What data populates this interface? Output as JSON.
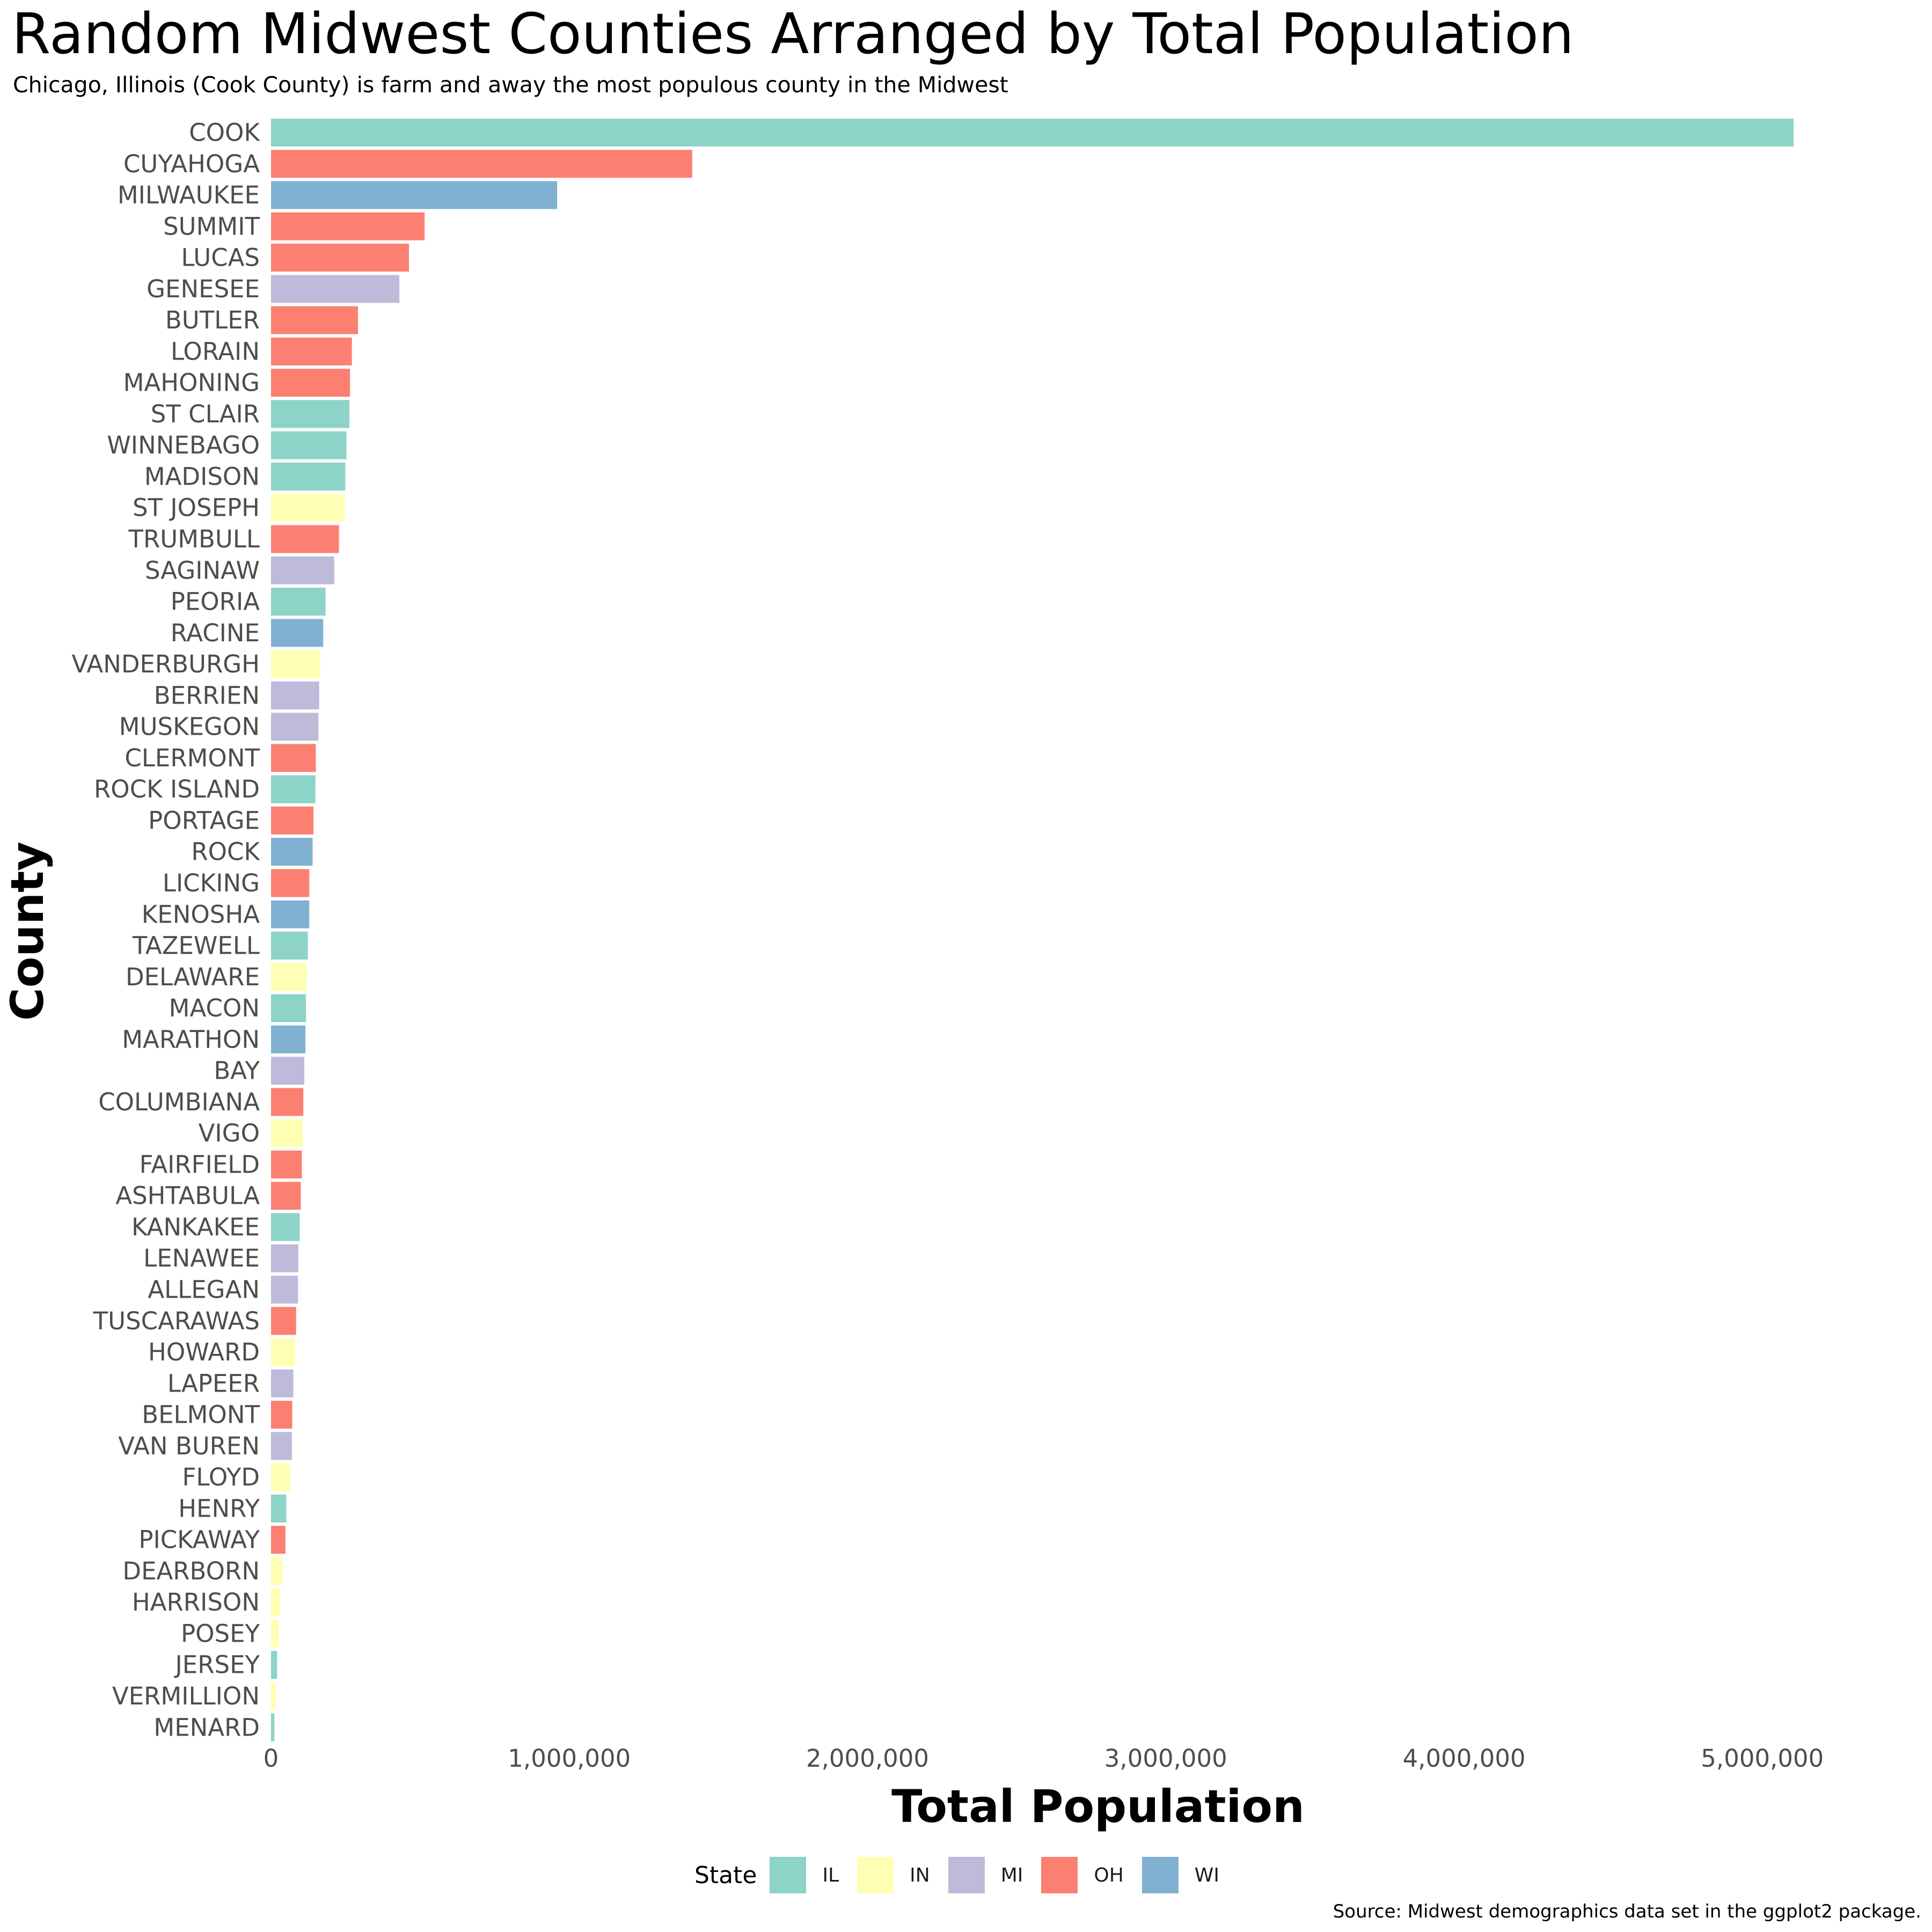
{
  "title": "Random Midwest Counties Arranged by Total Population",
  "subtitle": "Chicago, Illinois (Cook County) is farm and away the most populous county in the Midwest",
  "caption": "Source: Midwest demographics data set in the ggplot2 package.",
  "colors": {
    "IL": "#8DD3C7",
    "IN": "#FFFFB3",
    "MI": "#BEBADA",
    "OH": "#FB8072",
    "WI": "#80B1D3"
  },
  "legend": {
    "title": "State",
    "items": [
      {
        "key": "IL",
        "label": "IL"
      },
      {
        "key": "IN",
        "label": "IN"
      },
      {
        "key": "MI",
        "label": "MI"
      },
      {
        "key": "OH",
        "label": "OH"
      },
      {
        "key": "WI",
        "label": "WI"
      }
    ]
  },
  "chart_data": {
    "type": "bar",
    "orientation": "horizontal",
    "xlabel": "Total Population",
    "ylabel": "County",
    "xlim": [
      0,
      5200000
    ],
    "x_ticks": [
      0,
      1000000,
      2000000,
      3000000,
      4000000,
      5000000
    ],
    "x_tick_labels": [
      "0",
      "1,000,000",
      "2,000,000",
      "3,000,000",
      "4,000,000",
      "5,000,000"
    ],
    "grid": false,
    "legend_position": "bottom",
    "categories": [
      "COOK",
      "CUYAHOGA",
      "MILWAUKEE",
      "SUMMIT",
      "LUCAS",
      "GENESEE",
      "BUTLER",
      "LORAIN",
      "MAHONING",
      "ST CLAIR",
      "WINNEBAGO",
      "MADISON",
      "ST JOSEPH",
      "TRUMBULL",
      "SAGINAW",
      "PEORIA",
      "RACINE",
      "VANDERBURGH",
      "BERRIEN",
      "MUSKEGON",
      "CLERMONT",
      "ROCK ISLAND",
      "PORTAGE",
      "ROCK",
      "LICKING",
      "KENOSHA",
      "TAZEWELL",
      "DELAWARE",
      "MACON",
      "MARATHON",
      "BAY",
      "COLUMBIANA",
      "VIGO",
      "FAIRFIELD",
      "ASHTABULA",
      "KANKAKEE",
      "LENAWEE",
      "ALLEGAN",
      "TUSCARAWAS",
      "HOWARD",
      "LAPEER",
      "BELMONT",
      "VAN BUREN",
      "FLOYD",
      "HENRY",
      "PICKAWAY",
      "DEARBORN",
      "HARRISON",
      "POSEY",
      "JERSEY",
      "VERMILLION",
      "MENARD"
    ],
    "values": [
      5105067,
      1412140,
      959275,
      514990,
      462361,
      430459,
      291479,
      271126,
      264806,
      262852,
      252913,
      249238,
      247052,
      227813,
      211946,
      182827,
      175034,
      165058,
      161378,
      158983,
      150187,
      148723,
      142585,
      139510,
      128300,
      128181,
      123692,
      119659,
      117206,
      115400,
      111723,
      108276,
      106107,
      103461,
      99821,
      96255,
      91476,
      90509,
      84090,
      80827,
      74768,
      71074,
      70060,
      64404,
      51159,
      48255,
      38835,
      29890,
      25968,
      20539,
      16773,
      11164
    ],
    "states": [
      "IL",
      "OH",
      "WI",
      "OH",
      "OH",
      "MI",
      "OH",
      "OH",
      "OH",
      "IL",
      "IL",
      "IL",
      "IN",
      "OH",
      "MI",
      "IL",
      "WI",
      "IN",
      "MI",
      "MI",
      "OH",
      "IL",
      "OH",
      "WI",
      "OH",
      "WI",
      "IL",
      "IN",
      "IL",
      "WI",
      "MI",
      "OH",
      "IN",
      "OH",
      "OH",
      "IL",
      "MI",
      "MI",
      "OH",
      "IN",
      "MI",
      "OH",
      "MI",
      "IN",
      "IL",
      "OH",
      "IN",
      "IN",
      "IN",
      "IL",
      "IN",
      "IL"
    ]
  }
}
